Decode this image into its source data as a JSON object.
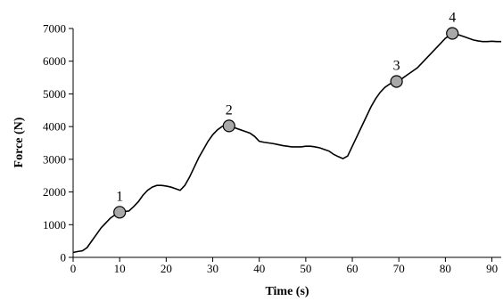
{
  "chart_data": {
    "type": "line",
    "title": "",
    "xlabel": "Time (s)",
    "ylabel": "Force (N)",
    "xlim": [
      0,
      92
    ],
    "ylim": [
      0,
      7000
    ],
    "x_ticks": [
      0,
      10,
      20,
      30,
      40,
      50,
      60,
      70,
      80,
      90
    ],
    "y_ticks": [
      0,
      1000,
      2000,
      3000,
      4000,
      5000,
      6000,
      7000
    ],
    "grid": false,
    "line_color": "#000000",
    "marker_fill": "#a8a8a8",
    "series": [
      {
        "x": [
          0,
          1,
          2,
          3,
          4,
          5,
          6,
          7,
          8,
          9,
          10,
          11,
          12,
          13,
          14,
          15,
          16,
          17,
          18,
          19,
          20,
          21,
          22,
          23,
          24,
          25,
          26,
          27,
          28,
          29,
          30,
          31,
          32,
          33,
          34,
          35,
          36,
          37,
          38,
          39,
          40,
          41,
          42,
          43,
          44,
          45,
          46,
          47,
          48,
          49,
          50,
          51,
          52,
          53,
          54,
          55,
          56,
          57,
          58,
          59,
          60,
          61,
          62,
          63,
          64,
          65,
          66,
          67,
          68,
          69,
          70,
          71,
          72,
          73,
          74,
          75,
          76,
          77,
          78,
          79,
          80,
          81,
          82,
          83,
          84,
          85,
          86,
          87,
          88,
          89,
          90,
          91,
          92
        ],
        "y": [
          150,
          180,
          200,
          300,
          500,
          700,
          900,
          1050,
          1200,
          1300,
          1380,
          1400,
          1420,
          1550,
          1700,
          1900,
          2050,
          2150,
          2200,
          2200,
          2180,
          2150,
          2100,
          2050,
          2200,
          2450,
          2750,
          3050,
          3300,
          3550,
          3750,
          3900,
          4000,
          4050,
          4000,
          3950,
          3900,
          3850,
          3800,
          3700,
          3550,
          3520,
          3500,
          3480,
          3450,
          3420,
          3400,
          3380,
          3380,
          3380,
          3400,
          3400,
          3380,
          3350,
          3300,
          3250,
          3150,
          3080,
          3020,
          3100,
          3400,
          3700,
          4000,
          4300,
          4600,
          4850,
          5050,
          5200,
          5300,
          5350,
          5400,
          5500,
          5600,
          5700,
          5800,
          5950,
          6100,
          6250,
          6400,
          6550,
          6700,
          6800,
          6830,
          6800,
          6750,
          6700,
          6650,
          6620,
          6600,
          6600,
          6610,
          6600,
          6600
        ]
      }
    ],
    "markers": [
      {
        "label": "1",
        "x": 10,
        "y": 1380
      },
      {
        "label": "2",
        "x": 33.5,
        "y": 4020
      },
      {
        "label": "3",
        "x": 69.5,
        "y": 5380
      },
      {
        "label": "4",
        "x": 81.5,
        "y": 6850
      }
    ]
  }
}
